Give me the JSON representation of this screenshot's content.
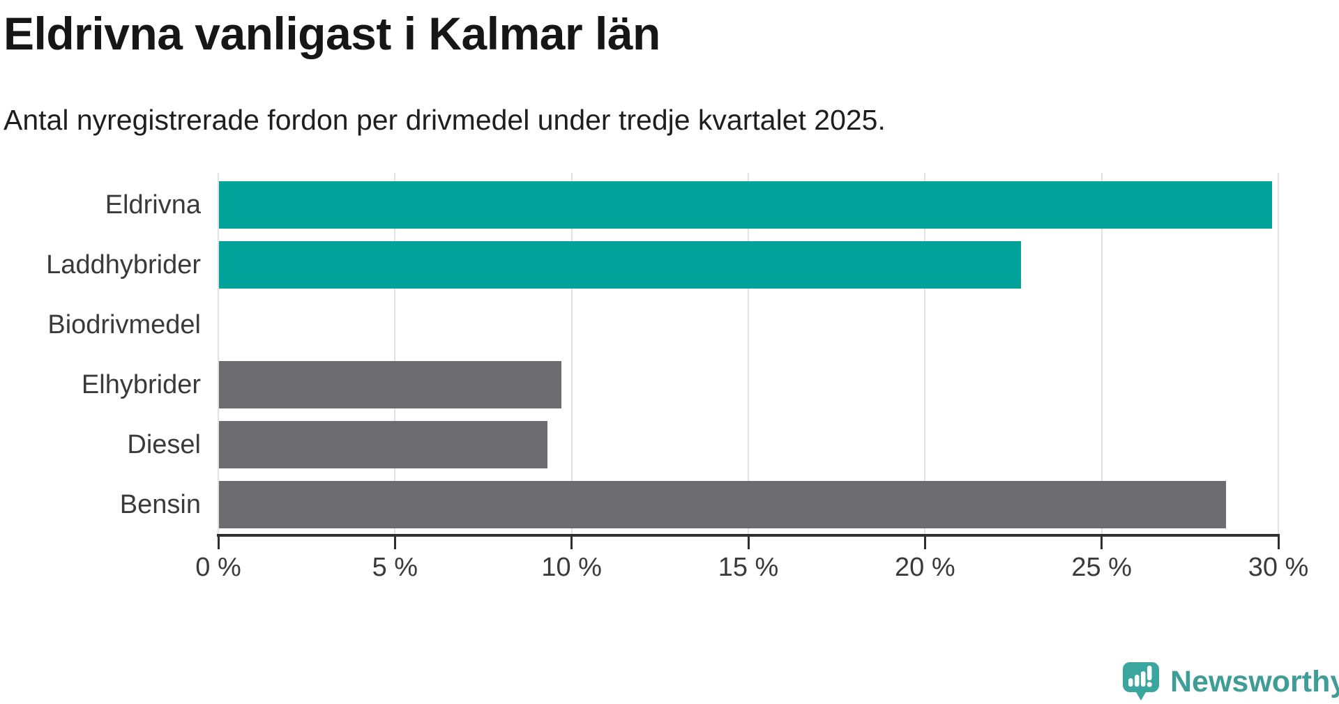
{
  "header": {
    "title": "Eldrivna vanligast i Kalmar län",
    "subtitle": "Antal nyregistrerade fordon per drivmedel under tredje kvartalet 2025."
  },
  "chart_data": {
    "type": "bar",
    "orientation": "horizontal",
    "title": "Eldrivna vanligast i Kalmar län",
    "subtitle": "Antal nyregistrerade fordon per drivmedel under tredje kvartalet 2025.",
    "categories": [
      "Eldrivna",
      "Laddhybrider",
      "Biodrivmedel",
      "Elhybrider",
      "Diesel",
      "Bensin"
    ],
    "values": [
      29.8,
      22.7,
      0,
      9.7,
      9.3,
      28.5
    ],
    "unit": "%",
    "xlabel": "",
    "ylabel": "",
    "xlim": [
      0,
      30
    ],
    "x_ticks": [
      0,
      5,
      10,
      15,
      20,
      25,
      30
    ],
    "x_tick_labels": [
      "0 %",
      "5 %",
      "10 %",
      "15 %",
      "20 %",
      "25 %",
      "30 %"
    ],
    "grid": "vertical-gridlines-on",
    "legend": "none",
    "bar_colors": [
      "#00a29a",
      "#00a29a",
      "#6c6c71",
      "#6c6c71",
      "#6c6c71",
      "#6c6c71"
    ],
    "highlight_color": "#00a29a",
    "neutral_color": "#6c6c71"
  },
  "footer": {
    "brand": "Newsworthy",
    "logo_icon": "newsworthy-speech-bubble-bar-chart-icon",
    "brand_color": "#3f9d96",
    "icon_color": "#3ba69e"
  }
}
